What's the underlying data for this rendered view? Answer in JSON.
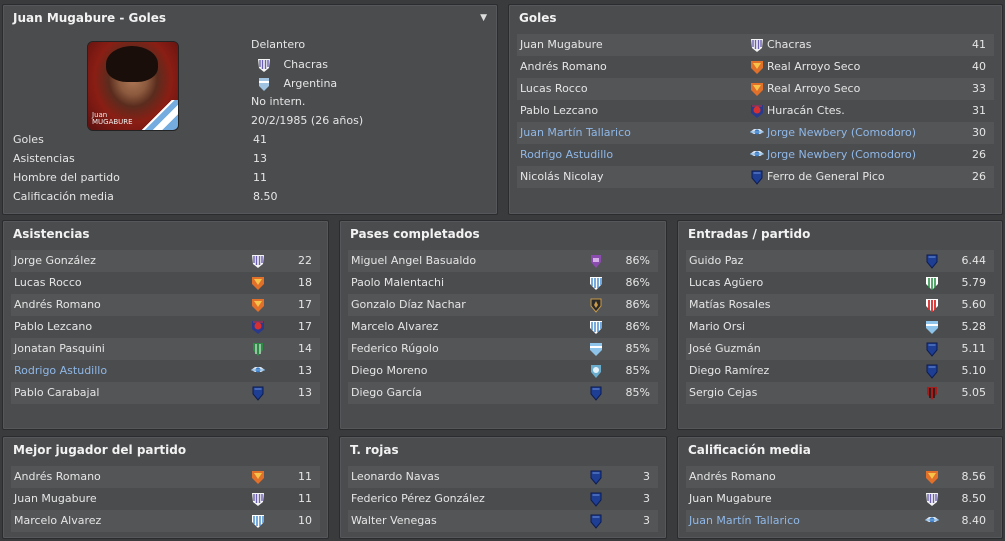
{
  "player_panel": {
    "title": "Juan Mugabure - Goles",
    "photo_caption": [
      "Juan",
      "MUGABURE"
    ],
    "position": "Delantero",
    "club": "Chacras",
    "nationality": "Argentina",
    "intl": "No intern.",
    "dob": "20/2/1985 (26 años)",
    "stats": [
      {
        "label": "Goles",
        "value": "41"
      },
      {
        "label": "Asistencias",
        "value": "13"
      },
      {
        "label": "Hombre del partido",
        "value": "11"
      },
      {
        "label": "Calificación media",
        "value": "8.50"
      }
    ]
  },
  "goles": {
    "title": "Goles",
    "rows": [
      {
        "name": "Juan Mugabure",
        "club": "Chacras",
        "badge": "chacras",
        "value": "41",
        "link": false
      },
      {
        "name": "Andrés Romano",
        "club": "Real Arroyo Seco",
        "badge": "arroyo",
        "value": "40",
        "link": false
      },
      {
        "name": "Lucas Rocco",
        "club": "Real Arroyo Seco",
        "badge": "arroyo",
        "value": "33",
        "link": false
      },
      {
        "name": "Pablo Lezcano",
        "club": "Huracán Ctes.",
        "badge": "huracan",
        "value": "31",
        "link": false
      },
      {
        "name": "Juan Martín Tallarico",
        "club": "Jorge Newbery (Comodoro)",
        "badge": "newbery",
        "value": "30",
        "link": true
      },
      {
        "name": "Rodrigo Astudillo",
        "club": "Jorge Newbery (Comodoro)",
        "badge": "newbery",
        "value": "26",
        "link": true
      },
      {
        "name": "Nicolás Nicolay",
        "club": "Ferro de General Pico",
        "badge": "ferro",
        "value": "26",
        "link": false
      }
    ]
  },
  "panels": [
    {
      "id": "asistencias",
      "title": "Asistencias",
      "rows": [
        {
          "name": "Jorge González",
          "badge": "chacras",
          "value": "22",
          "link": false
        },
        {
          "name": "Lucas Rocco",
          "badge": "arroyo",
          "value": "18",
          "link": false
        },
        {
          "name": "Andrés Romano",
          "badge": "arroyo",
          "value": "17",
          "link": false
        },
        {
          "name": "Pablo Lezcano",
          "badge": "huracan",
          "value": "17",
          "link": false
        },
        {
          "name": "Jonatan Pasquini",
          "badge": "green",
          "value": "14",
          "link": false
        },
        {
          "name": "Rodrigo Astudillo",
          "badge": "newbery",
          "value": "13",
          "link": true
        },
        {
          "name": "Pablo Carabajal",
          "badge": "ferro",
          "value": "13",
          "link": false
        }
      ]
    },
    {
      "id": "pases",
      "title": "Pases completados",
      "rows": [
        {
          "name": "Miguel Angel Basualdo",
          "badge": "purple",
          "value": "86%",
          "link": false
        },
        {
          "name": "Paolo Malentachi",
          "badge": "stripes",
          "value": "86%",
          "link": false
        },
        {
          "name": "Gonzalo Díaz Nachar",
          "badge": "dark",
          "value": "86%",
          "link": false
        },
        {
          "name": "Marcelo Alvarez",
          "badge": "stripes",
          "value": "86%",
          "link": false
        },
        {
          "name": "Federico Rúgolo",
          "badge": "sky",
          "value": "85%",
          "link": false
        },
        {
          "name": "Diego Moreno",
          "badge": "teal",
          "value": "85%",
          "link": false
        },
        {
          "name": "Diego García",
          "badge": "ferro",
          "value": "85%",
          "link": false
        }
      ]
    },
    {
      "id": "entradas",
      "title": "Entradas / partido",
      "rows": [
        {
          "name": "Guido Paz",
          "badge": "ferro",
          "value": "6.44",
          "link": false
        },
        {
          "name": "Lucas Agüero",
          "badge": "greenstripe",
          "value": "5.79",
          "link": false
        },
        {
          "name": "Matías Rosales",
          "badge": "redstripe",
          "value": "5.60",
          "link": false
        },
        {
          "name": "Mario Orsi",
          "badge": "sky",
          "value": "5.28",
          "link": false
        },
        {
          "name": "José Guzmán",
          "badge": "ferro",
          "value": "5.11",
          "link": false
        },
        {
          "name": "Diego Ramírez",
          "badge": "ferro",
          "value": "5.10",
          "link": false
        },
        {
          "name": "Sergio Cejas",
          "badge": "redblack",
          "value": "5.05",
          "link": false
        }
      ]
    },
    {
      "id": "mejor",
      "title": "Mejor jugador del partido",
      "rows": [
        {
          "name": "Andrés Romano",
          "badge": "arroyo",
          "value": "11",
          "link": false
        },
        {
          "name": "Juan Mugabure",
          "badge": "chacras",
          "value": "11",
          "link": false
        },
        {
          "name": "Marcelo Alvarez",
          "badge": "stripes",
          "value": "10",
          "link": false
        }
      ]
    },
    {
      "id": "rojas",
      "title": "T. rojas",
      "rows": [
        {
          "name": "Leonardo Navas",
          "badge": "ferro",
          "value": "3",
          "link": false
        },
        {
          "name": "Federico Pérez González",
          "badge": "ferro",
          "value": "3",
          "link": false
        },
        {
          "name": "Walter Venegas",
          "badge": "ferro",
          "value": "3",
          "link": false
        }
      ]
    },
    {
      "id": "calificacion",
      "title": "Calificación media",
      "rows": [
        {
          "name": "Andrés Romano",
          "badge": "arroyo",
          "value": "8.56",
          "link": false
        },
        {
          "name": "Juan Mugabure",
          "badge": "chacras",
          "value": "8.50",
          "link": false
        },
        {
          "name": "Juan Martín Tallarico",
          "badge": "newbery",
          "value": "8.40",
          "link": true
        }
      ]
    }
  ]
}
